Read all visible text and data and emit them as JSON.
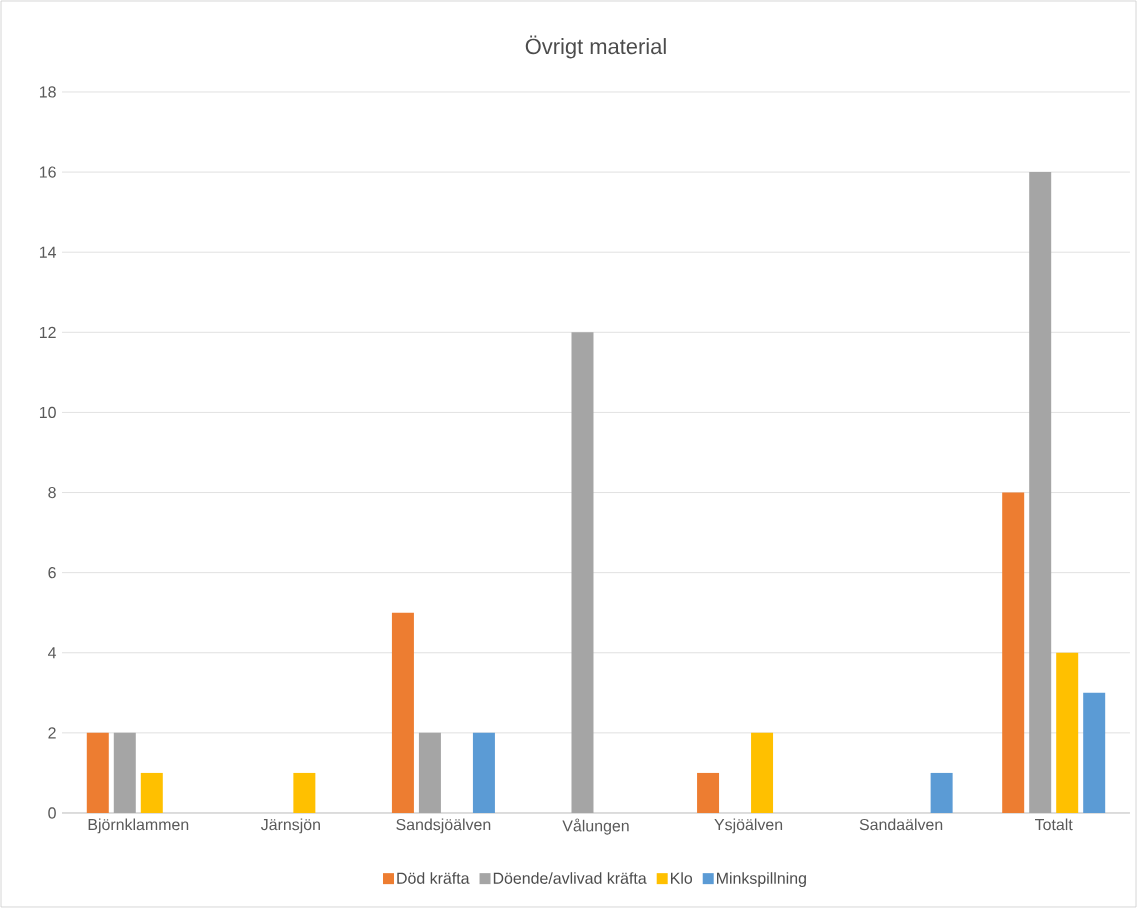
{
  "chart_data": {
    "type": "bar",
    "title": "Övrigt material",
    "categories": [
      "Björnklammen",
      "Järnsjön",
      "Sandsjöälven",
      "Vålungen",
      "Ysjöälven",
      "Sandaälven",
      "Totalt"
    ],
    "series": [
      {
        "name": "Död kräfta",
        "color": "#ed7d31",
        "values": [
          2,
          0,
          5,
          0,
          1,
          0,
          8
        ]
      },
      {
        "name": "Döende/avlivad kräfta",
        "color": "#a5a5a5",
        "values": [
          2,
          0,
          2,
          12,
          0,
          0,
          16
        ]
      },
      {
        "name": "Klo",
        "color": "#ffc000",
        "values": [
          1,
          1,
          0,
          0,
          2,
          0,
          4
        ]
      },
      {
        "name": "Minkspillning",
        "color": "#5b9bd5",
        "values": [
          0,
          0,
          2,
          0,
          0,
          1,
          3
        ]
      }
    ],
    "ylim": [
      0,
      18
    ],
    "yticks": [
      0,
      2,
      4,
      6,
      8,
      10,
      12,
      14,
      16,
      18
    ],
    "grid": "y",
    "legend": "bottom"
  }
}
